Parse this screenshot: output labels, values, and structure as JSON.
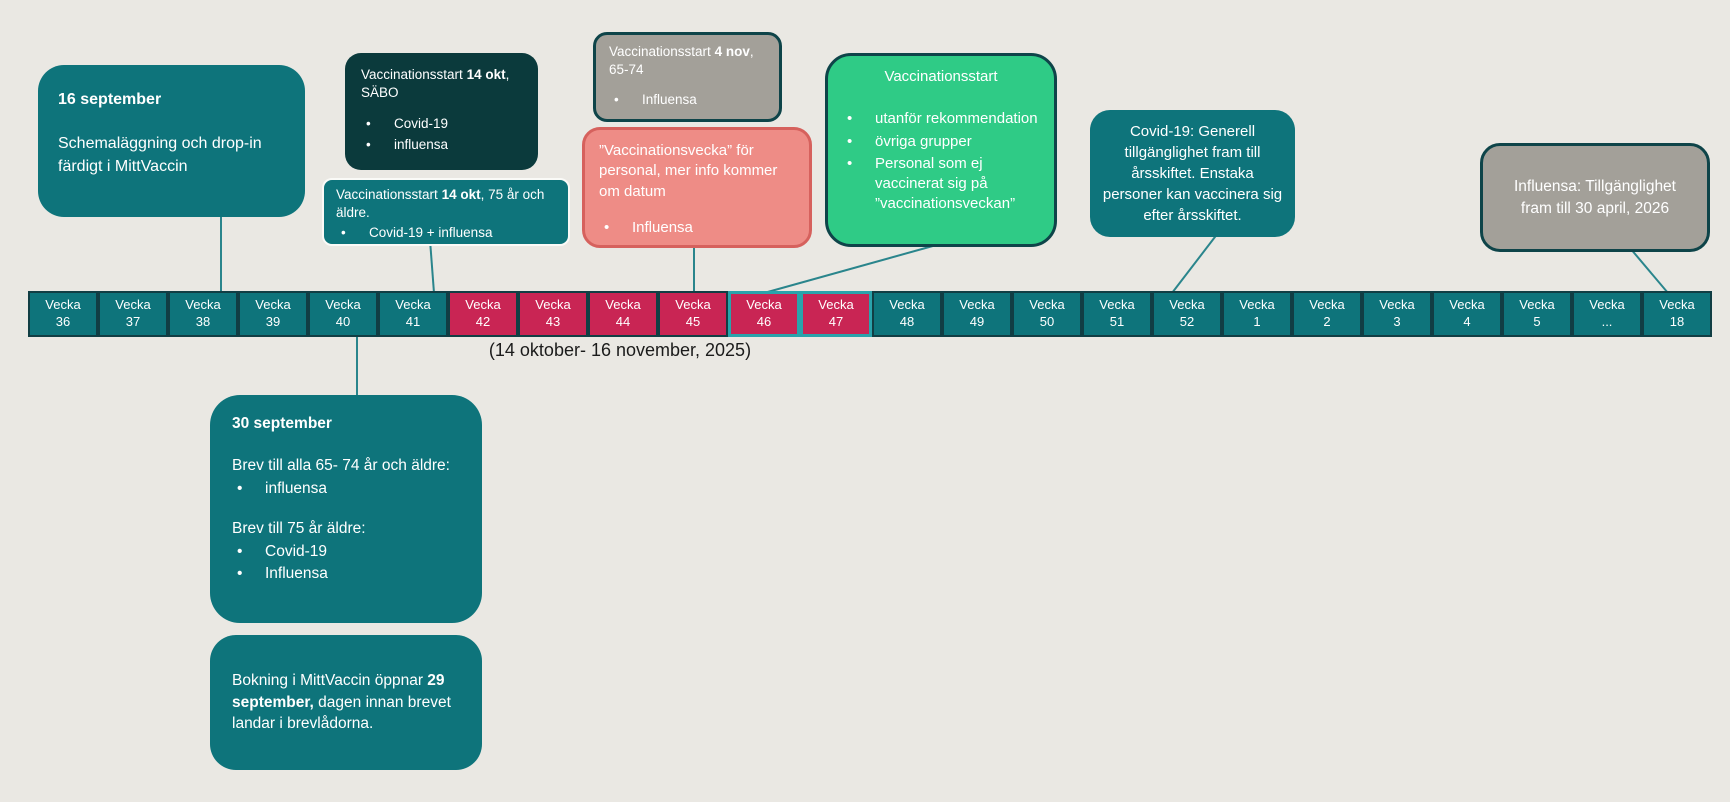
{
  "colors": {
    "background": "#eae8e3",
    "teal": "#0e747b",
    "dark_teal": "#0b3a3c",
    "cell_outline": "#113e44",
    "red": "#c92554",
    "highlight_border": "#2aa3ab",
    "gray": "#a3a099",
    "pink": "#ee8c86",
    "pink_border": "#d6615d",
    "green": "#2fcb86",
    "connector": "#2a858c"
  },
  "callouts": {
    "sep16": {
      "title": "16 september",
      "body": "Schemaläggning och drop-in färdigt i MittVaccin"
    },
    "sabo": {
      "t1": "Vaccinationsstart ",
      "t2": "14 okt",
      "t3": ", SÄBO",
      "bullets": [
        "Covid-19",
        "influensa"
      ]
    },
    "okt75": {
      "t1": "Vaccinationsstart ",
      "t2": "14 okt",
      "t3": ", 75 år och äldre.",
      "bullets": [
        "Covid-19 + influensa"
      ]
    },
    "nov4": {
      "t1": "Vaccinationsstart ",
      "t2": "4 nov",
      "t3": ", 65-74",
      "bullets": [
        "Influensa"
      ]
    },
    "vaccweek": {
      "body": "”Vaccinationsvecka” för personal, mer info kommer om datum",
      "bullets": [
        "Influensa"
      ]
    },
    "vaccstart": {
      "title": "Vaccinationsstart",
      "bullets": [
        "utanför rekommendation",
        "övriga grupper",
        "Personal som ej vaccinerat sig på ”vaccinationsveckan”"
      ]
    },
    "covid": {
      "body": "Covid-19: Generell tillgänglighet fram till årsskiftet. Enstaka personer kan vaccinera sig efter årsskiftet."
    },
    "influensa": {
      "body": "Influensa: Tillgänglighet fram till 30 april, 2026"
    },
    "sep30": {
      "title": "30 september",
      "p1": "Brev till alla 65- 74 år och äldre:",
      "bullets1": [
        "influensa"
      ],
      "p2": "Brev till 75 år äldre:",
      "bullets2": [
        "Covid-19",
        "Influensa"
      ]
    },
    "bokning": {
      "t1": "Bokning i MittVaccin öppnar ",
      "t2": "29 september,",
      "t3": " dagen innan brevet landar i brevlådorna."
    }
  },
  "timeline": {
    "week_label": "Vecka",
    "caption": "(14 oktober- 16 november, 2025)",
    "weeks": [
      {
        "num": "36",
        "variant": "teal"
      },
      {
        "num": "37",
        "variant": "teal"
      },
      {
        "num": "38",
        "variant": "teal"
      },
      {
        "num": "39",
        "variant": "teal"
      },
      {
        "num": "40",
        "variant": "teal"
      },
      {
        "num": "41",
        "variant": "teal"
      },
      {
        "num": "42",
        "variant": "red"
      },
      {
        "num": "43",
        "variant": "red"
      },
      {
        "num": "44",
        "variant": "red"
      },
      {
        "num": "45",
        "variant": "red"
      },
      {
        "num": "46",
        "variant": "red-hi"
      },
      {
        "num": "47",
        "variant": "red-hi"
      },
      {
        "num": "48",
        "variant": "teal"
      },
      {
        "num": "49",
        "variant": "teal"
      },
      {
        "num": "50",
        "variant": "teal"
      },
      {
        "num": "51",
        "variant": "teal"
      },
      {
        "num": "52",
        "variant": "teal"
      },
      {
        "num": "1",
        "variant": "teal"
      },
      {
        "num": "2",
        "variant": "teal"
      },
      {
        "num": "3",
        "variant": "teal"
      },
      {
        "num": "4",
        "variant": "teal"
      },
      {
        "num": "5",
        "variant": "teal"
      },
      {
        "num": "...",
        "variant": "teal"
      },
      {
        "num": "18",
        "variant": "teal"
      }
    ]
  }
}
